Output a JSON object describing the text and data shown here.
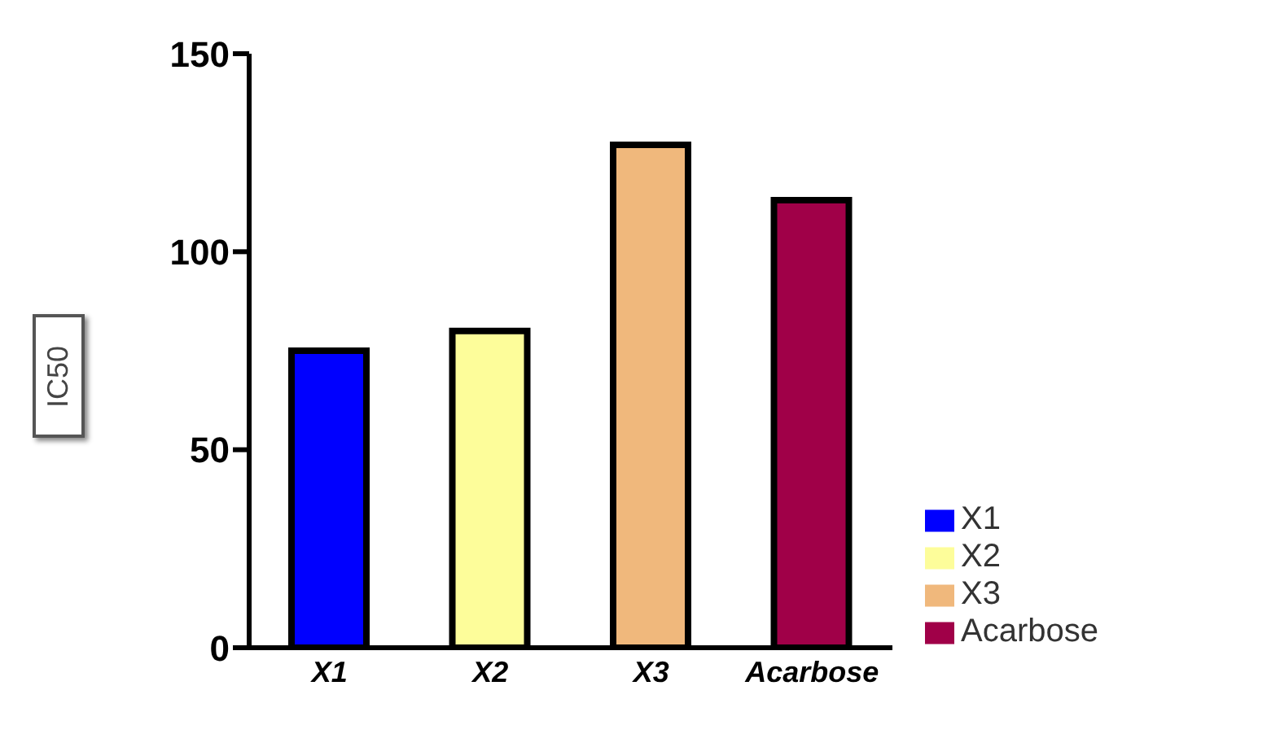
{
  "chart_data": {
    "type": "bar",
    "ylabel": "IC50",
    "stacked": true,
    "categories": [
      "X1",
      "X2",
      "X3",
      "Acarbose"
    ],
    "series": [
      {
        "name": "X1",
        "color": "#0000ff",
        "values": [
          75,
          null,
          null,
          null
        ]
      },
      {
        "name": "X2",
        "color": "#fdfd9a",
        "values": [
          null,
          80,
          null,
          null
        ]
      },
      {
        "name": "X3",
        "color": "#f0b87c",
        "values": [
          null,
          null,
          127,
          null
        ]
      },
      {
        "name": "Acarbose",
        "color": "#a00048",
        "values": [
          null,
          null,
          null,
          113
        ]
      }
    ],
    "ylim": [
      0,
      150
    ],
    "yticks": [
      0,
      50,
      100,
      150
    ],
    "grid": false,
    "legend": "right"
  }
}
